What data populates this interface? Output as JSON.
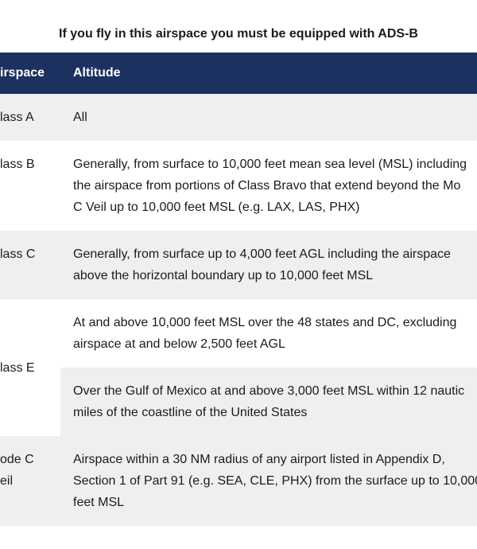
{
  "title": "If you fly in this airspace you must be equipped with ADS-B",
  "table": {
    "header": [
      "irspace",
      "Altitude"
    ],
    "rows": [
      {
        "airspace": [
          "lass A"
        ],
        "altitude": [
          [
            "All"
          ]
        ]
      },
      {
        "airspace": [
          "lass B"
        ],
        "altitude": [
          [
            "Generally, from surface to 10,000 feet mean sea level (MSL) including",
            "the airspace from portions of Class Bravo that extend beyond the Mo",
            "C Veil up to 10,000 feet MSL (e.g. LAX, LAS, PHX)"
          ]
        ]
      },
      {
        "airspace": [
          "lass C"
        ],
        "altitude": [
          [
            "Generally, from surface up to 4,000 feet AGL including the airspace",
            "above the horizontal boundary up to 10,000 feet MSL"
          ]
        ]
      },
      {
        "airspace": [
          "lass E"
        ],
        "altitude": [
          [
            "At and above 10,000 feet MSL over the 48 states and DC, excluding",
            "airspace at and below 2,500 feet AGL"
          ],
          [
            "Over the Gulf of Mexico at and above 3,000 feet MSL within 12 nautic",
            "miles of the coastline of the United States"
          ]
        ]
      },
      {
        "airspace": [
          "ode C",
          "eil"
        ],
        "altitude": [
          [
            "Airspace within a 30 NM radius of any airport listed in Appendix D,",
            "Section 1 of Part 91 (e.g. SEA, CLE, PHX) from the surface up to 10,000",
            "feet MSL"
          ]
        ]
      }
    ]
  }
}
